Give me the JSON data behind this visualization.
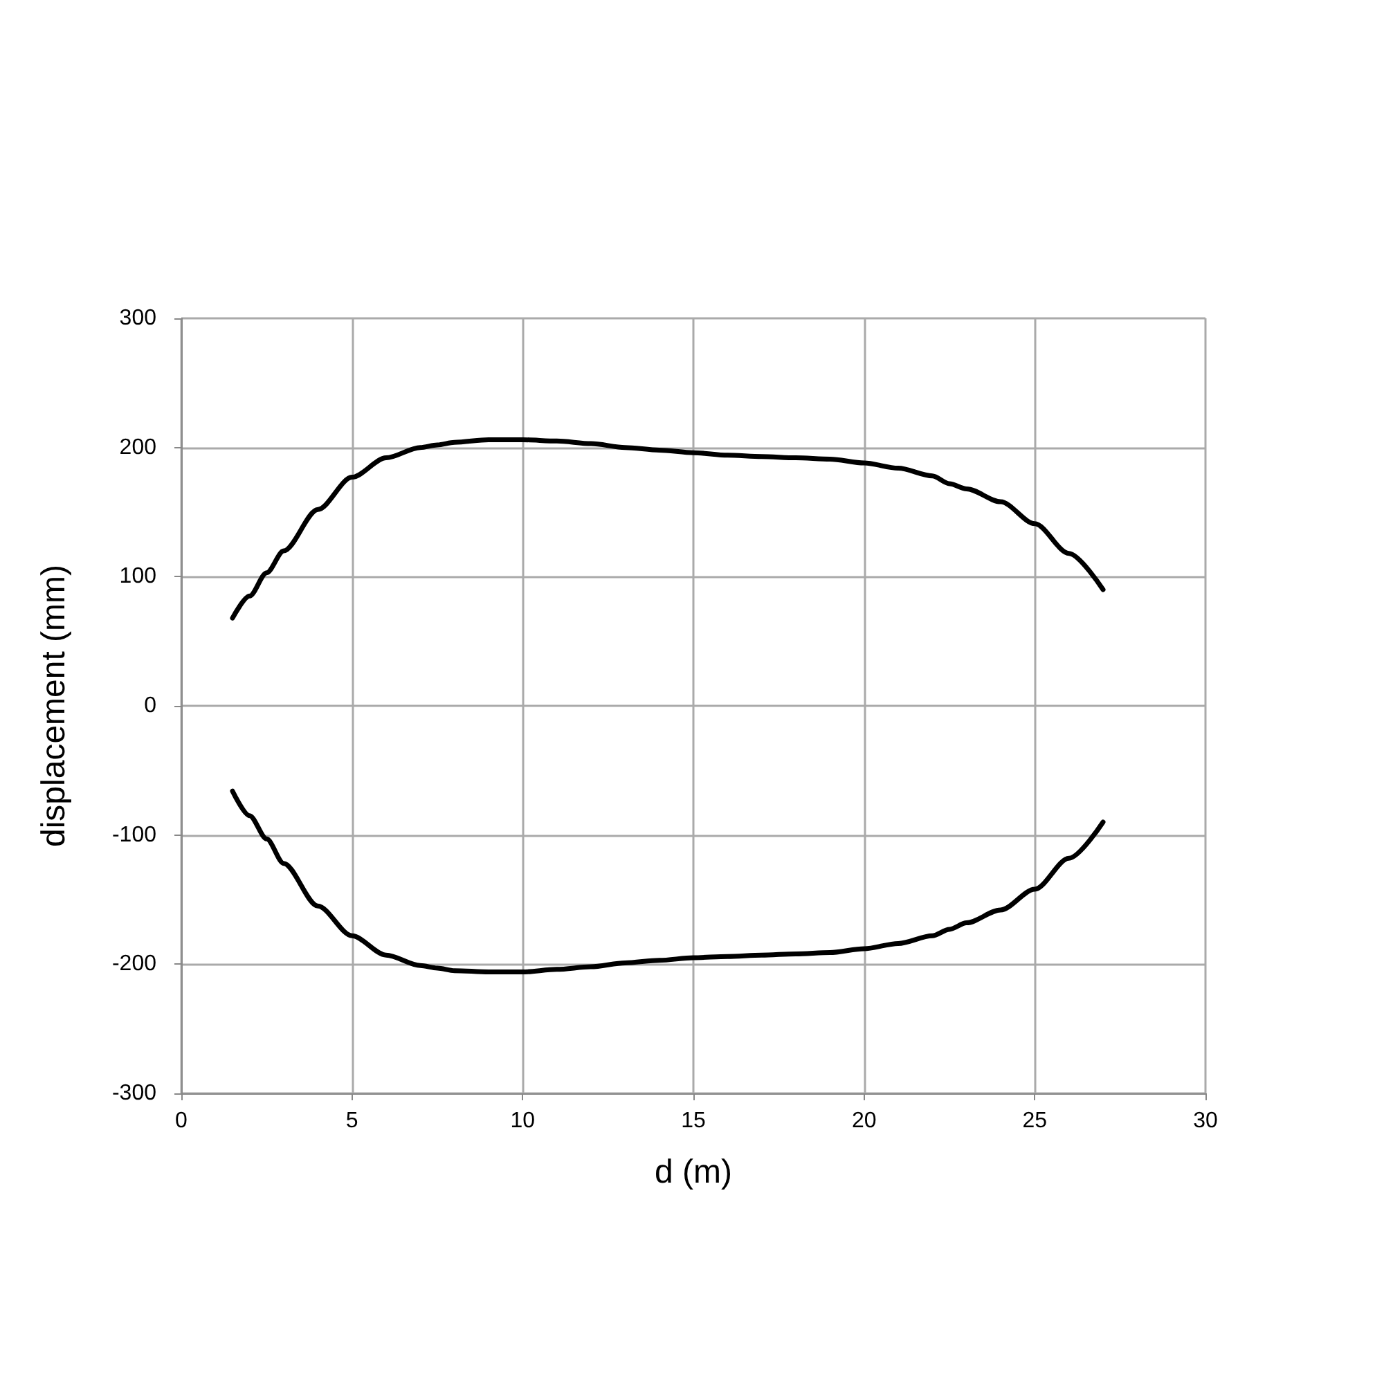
{
  "chart_data": {
    "type": "line",
    "xlabel": "d (m)",
    "ylabel": "displacement (mm)",
    "xlim": [
      0,
      30
    ],
    "xticks": [
      0,
      5,
      10,
      15,
      20,
      25,
      30
    ],
    "ylim": [
      -300,
      300
    ],
    "yticks": [
      -300,
      -200,
      -100,
      0,
      100,
      200,
      300
    ],
    "grid": true,
    "marker": "none",
    "line_style": "solid",
    "series": [
      {
        "color": "#000000",
        "x": [
          1.5,
          2,
          2.5,
          3,
          4,
          5,
          6,
          7,
          7.5,
          8,
          9,
          10,
          11,
          12,
          13,
          14,
          15,
          16,
          17,
          18,
          19,
          20,
          21,
          22,
          22.5,
          23,
          24,
          25,
          26,
          27
        ],
        "values": [
          68,
          85,
          103,
          120,
          152,
          177,
          192,
          200,
          202,
          204,
          206,
          206,
          205,
          203,
          200,
          198,
          196,
          194,
          193,
          192,
          191,
          188,
          184,
          178,
          172,
          168,
          158,
          141,
          118,
          90
        ]
      },
      {
        "color": "#000000",
        "x": [
          1.5,
          2,
          2.5,
          3,
          4,
          5,
          6,
          7,
          7.5,
          8,
          9,
          10,
          11,
          12,
          13,
          14,
          15,
          16,
          17,
          18,
          19,
          20,
          21,
          22,
          22.5,
          23,
          24,
          25,
          26,
          27
        ],
        "values": [
          -66,
          -85,
          -103,
          -122,
          -155,
          -178,
          -193,
          -201,
          -203,
          -205,
          -206,
          -206,
          -204,
          -202,
          -199,
          -197,
          -195,
          -194,
          -193,
          -192,
          -191,
          -188,
          -184,
          -178,
          -173,
          -168,
          -158,
          -142,
          -118,
          -90
        ]
      }
    ]
  }
}
